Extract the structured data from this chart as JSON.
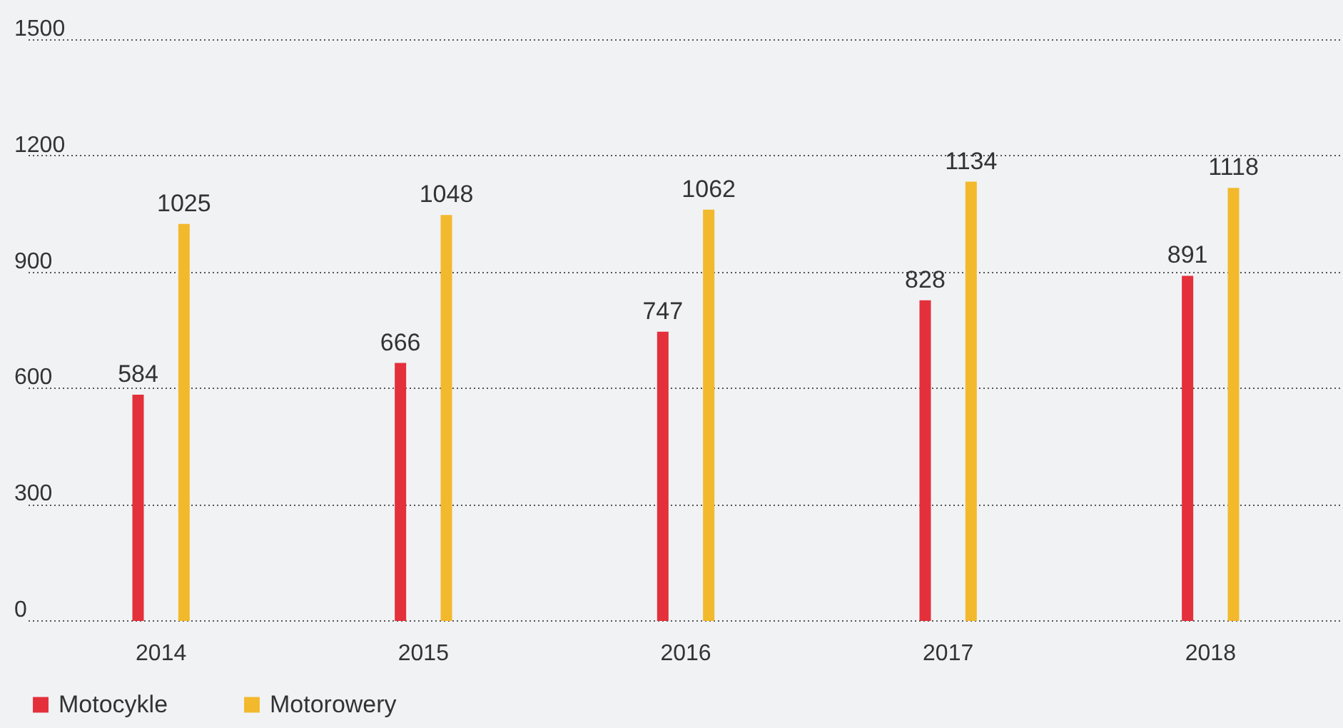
{
  "chart_data": {
    "type": "bar",
    "categories": [
      "2014",
      "2015",
      "2016",
      "2017",
      "2018"
    ],
    "series": [
      {
        "name": "Motocykle",
        "color": "#e3303b",
        "values": [
          584,
          666,
          747,
          828,
          891
        ]
      },
      {
        "name": "Motorowery",
        "color": "#f2b92c",
        "values": [
          1025,
          1048,
          1062,
          1134,
          1118
        ]
      }
    ],
    "ylim": [
      0,
      1500
    ],
    "yticks": [
      0,
      300,
      600,
      900,
      1200,
      1500
    ],
    "grid": "y",
    "legend": "bottom",
    "data_labels": true
  }
}
